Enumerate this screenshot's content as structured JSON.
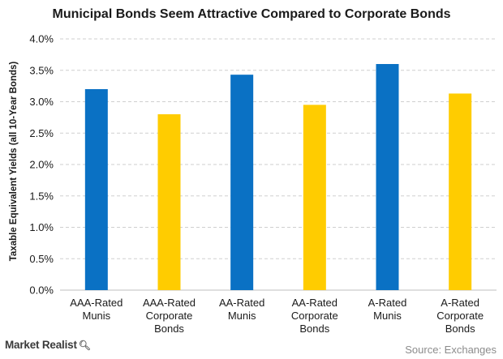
{
  "brand": {
    "logo_text": "Market Realist"
  },
  "source": "Source: Exchanges",
  "chart_data": {
    "type": "bar",
    "title": "Municipal Bonds Seem Attractive Compared to Corporate Bonds",
    "ylabel": "Taxable Equivalent Yields (all 10-Year Bonds)",
    "xlabel": "",
    "categories": [
      "AAA-Rated Munis",
      "AAA-Rated Corporate Bonds",
      "AA-Rated Munis",
      "AA-Rated Corporate Bonds",
      "A-Rated Munis",
      "A-Rated Corporate Bonds"
    ],
    "category_display": [
      "AAA-Rated\nMunis",
      "AAA-Rated\nCorporate\nBonds",
      "AA-Rated\nMunis",
      "AA-Rated\nCorporate\nBonds",
      "A-Rated\nMunis",
      "A-Rated\nCorporate\nBonds"
    ],
    "values": [
      3.2,
      2.8,
      3.43,
      2.95,
      3.6,
      3.13
    ],
    "bar_colors": [
      "#0a71c4",
      "#ffcc00",
      "#0a71c4",
      "#ffcc00",
      "#0a71c4",
      "#ffcc00"
    ],
    "ylim": [
      0,
      4
    ],
    "ytick_values": [
      0,
      0.5,
      1,
      1.5,
      2,
      2.5,
      3,
      3.5,
      4
    ],
    "ytick_labels": [
      "0.0%",
      "0.5%",
      "1.0%",
      "1.5%",
      "2.0%",
      "2.5%",
      "3.0%",
      "3.5%",
      "4.0%"
    ],
    "grid": true,
    "legend": "none"
  }
}
